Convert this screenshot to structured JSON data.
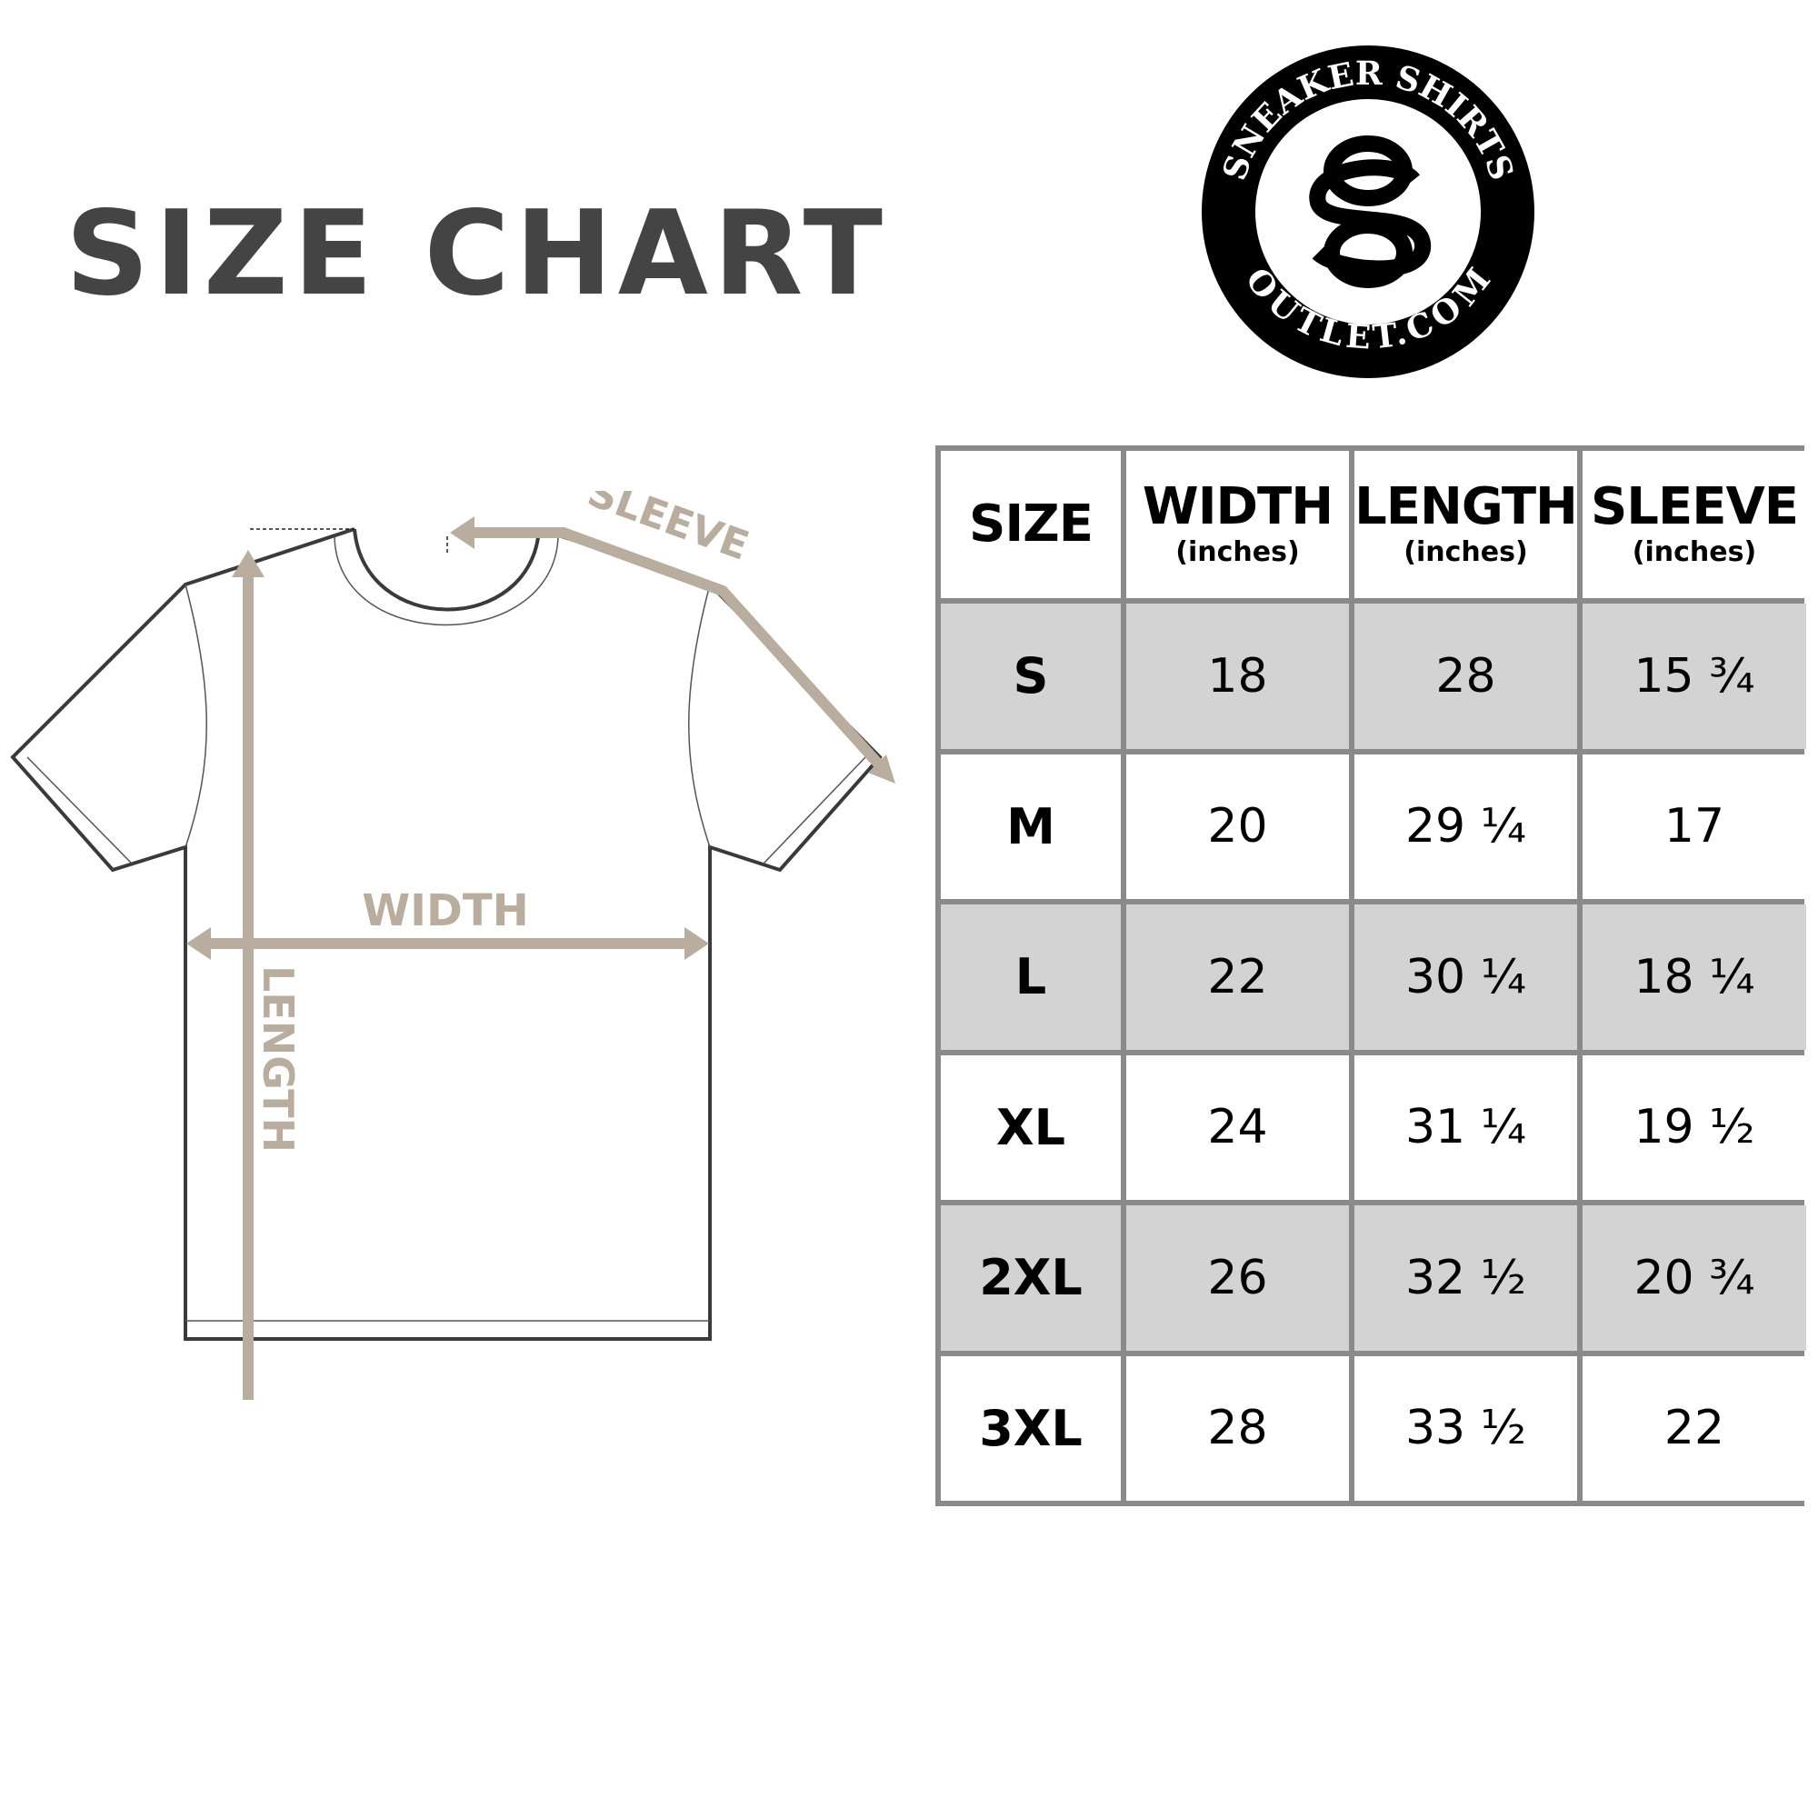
{
  "title": "SIZE CHART",
  "logo": {
    "top_text": "SNEAKER SHIRTS",
    "bottom_text": "OUTLET.COM",
    "monogram": "SO"
  },
  "diagram": {
    "sleeve_label": "SLEEVE",
    "width_label": "WIDTH",
    "length_label": "LENGTH",
    "arrow_color": "#b8ad9e"
  },
  "table": {
    "headers": [
      {
        "main": "SIZE",
        "sub": ""
      },
      {
        "main": "WIDTH",
        "sub": "(inches)"
      },
      {
        "main": "LENGTH",
        "sub": "(inches)"
      },
      {
        "main": "SLEEVE",
        "sub": "(inches)"
      }
    ],
    "rows": [
      [
        "S",
        "18",
        "28",
        "15 ¾"
      ],
      [
        "M",
        "20",
        "29 ¼",
        "17"
      ],
      [
        "L",
        "22",
        "30 ¼",
        "18 ¼"
      ],
      [
        "XL",
        "24",
        "31 ¼",
        "19 ½"
      ],
      [
        "2XL",
        "26",
        "32 ½",
        "20 ¾"
      ],
      [
        "3XL",
        "28",
        "33 ½",
        "22"
      ]
    ],
    "shade_color": "#d3d3d3",
    "border_color": "#8a8a8a"
  }
}
